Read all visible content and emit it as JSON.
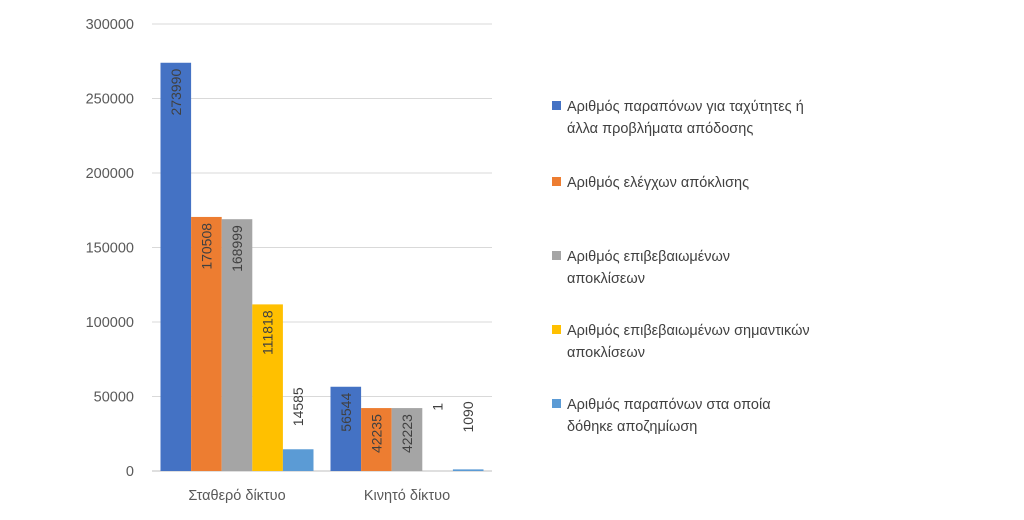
{
  "chart_data": {
    "type": "bar",
    "categories": [
      "Σταθερό δίκτυο",
      "Κινητό δίκτυο"
    ],
    "series": [
      {
        "name": "Αριθμός παραπόνων για ταχύτητες ή άλλα προβλήματα απόδοσης",
        "color": "#4472C4",
        "values": [
          273990,
          56544
        ]
      },
      {
        "name": "Αριθμός ελέγχων απόκλισης",
        "color": "#ED7D31",
        "values": [
          170508,
          42235
        ]
      },
      {
        "name": "Αριθμός επιβεβαιωμένων αποκλίσεων",
        "color": "#A5A5A5",
        "values": [
          168999,
          42223
        ]
      },
      {
        "name": "Αριθμός επιβεβαιωμένων σημαντικών αποκλίσεων",
        "color": "#FFC000",
        "values": [
          111818,
          1
        ]
      },
      {
        "name": "Αριθμός παραπόνων στα οποία δόθηκε αποζημίωση",
        "color": "#5B9BD5",
        "values": [
          14585,
          1090
        ]
      }
    ],
    "data_labels": [
      [
        "273990",
        "56544"
      ],
      [
        "170508",
        "42235"
      ],
      [
        "168999",
        "42223"
      ],
      [
        "111818",
        "1"
      ],
      [
        "14585",
        "1090"
      ]
    ],
    "yticks": [
      "0",
      "50000",
      "100000",
      "150000",
      "200000",
      "250000",
      "300000"
    ],
    "ylim": [
      0,
      300000
    ],
    "grid": true,
    "legend_position": "right",
    "title": "",
    "xlabel": "",
    "ylabel": ""
  }
}
